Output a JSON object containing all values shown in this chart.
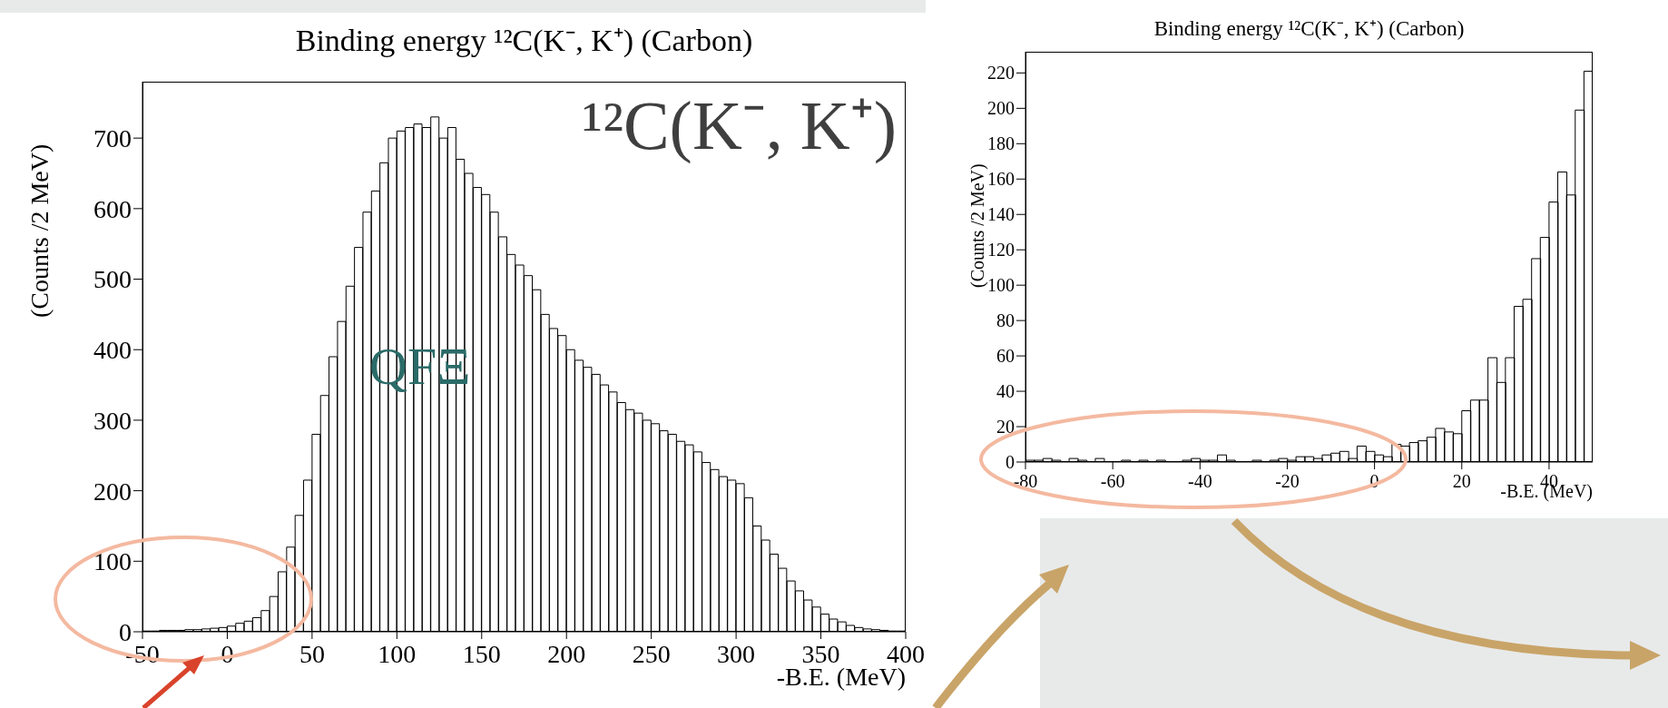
{
  "chart_data": [
    {
      "type": "histogram",
      "title": "Binding energy ¹²C(K⁻, K⁺) (Carbon)",
      "xlabel": "-B.E. (MeV)",
      "ylabel": "(Counts /2 MeV)",
      "bins": [
        -50,
        -45,
        -40,
        -35,
        -30,
        -25,
        -20,
        -15,
        -10,
        -5,
        0,
        5,
        10,
        15,
        20,
        25,
        30,
        35,
        40,
        45,
        50,
        55,
        60,
        65,
        70,
        75,
        80,
        85,
        90,
        95,
        100,
        105,
        110,
        115,
        120,
        125,
        130,
        135,
        140,
        145,
        150,
        155,
        160,
        165,
        170,
        175,
        180,
        185,
        190,
        195,
        200,
        205,
        210,
        215,
        220,
        225,
        230,
        235,
        240,
        245,
        250,
        255,
        260,
        265,
        270,
        275,
        280,
        285,
        290,
        295,
        300,
        305,
        310,
        315,
        320,
        325,
        330,
        335,
        340,
        345,
        350,
        355,
        360,
        365,
        370,
        375,
        380,
        385,
        390,
        395,
        400
      ],
      "values": [
        1,
        1,
        2,
        2,
        2,
        3,
        3,
        4,
        5,
        6,
        8,
        12,
        15,
        20,
        30,
        50,
        85,
        120,
        165,
        215,
        280,
        335,
        390,
        440,
        490,
        545,
        595,
        625,
        665,
        700,
        710,
        715,
        720,
        715,
        730,
        700,
        715,
        670,
        650,
        630,
        620,
        595,
        560,
        535,
        520,
        505,
        485,
        450,
        430,
        420,
        400,
        385,
        375,
        365,
        350,
        340,
        325,
        315,
        310,
        300,
        295,
        285,
        280,
        270,
        265,
        255,
        240,
        230,
        220,
        215,
        210,
        190,
        150,
        130,
        110,
        90,
        72,
        58,
        45,
        35,
        25,
        18,
        14,
        9,
        6,
        4,
        3,
        2,
        1,
        1
      ],
      "color": "#000000",
      "xlim": [
        -50,
        400
      ],
      "xticks": [
        -50,
        0,
        50,
        100,
        150,
        200,
        250,
        300,
        350,
        400
      ],
      "ylim": [
        0,
        780
      ],
      "yticks": [
        0,
        100,
        200,
        300,
        400,
        500,
        600,
        700
      ],
      "annotations": [
        "¹²C(K⁻, K⁺)",
        "QFΞ"
      ]
    },
    {
      "type": "histogram",
      "title": "Binding energy ¹²C(K⁻, K⁺) (Carbon)",
      "xlabel": "-B.E. (MeV)",
      "ylabel": "(Counts /2 MeV)",
      "bins": [
        -80,
        -78,
        -76,
        -74,
        -72,
        -70,
        -68,
        -66,
        -64,
        -62,
        -60,
        -58,
        -56,
        -54,
        -52,
        -50,
        -48,
        -46,
        -44,
        -42,
        -40,
        -38,
        -36,
        -34,
        -32,
        -30,
        -28,
        -26,
        -24,
        -22,
        -20,
        -18,
        -16,
        -14,
        -12,
        -10,
        -8,
        -6,
        -4,
        -2,
        0,
        2,
        4,
        6,
        8,
        10,
        12,
        14,
        16,
        18,
        20,
        22,
        24,
        26,
        28,
        30,
        32,
        34,
        36,
        38,
        40,
        42,
        44,
        46,
        48,
        50
      ],
      "values": [
        1,
        1,
        2,
        1,
        0,
        2,
        1,
        0,
        2,
        0,
        0,
        1,
        0,
        1,
        0,
        1,
        0,
        0,
        1,
        2,
        1,
        1,
        4,
        1,
        0,
        0,
        1,
        0,
        1,
        2,
        1,
        3,
        3,
        2,
        4,
        5,
        6,
        2,
        9,
        6,
        4,
        3,
        10,
        9,
        11,
        12,
        14,
        19,
        17,
        16,
        29,
        35,
        35,
        59,
        45,
        59,
        88,
        92,
        115,
        127,
        147,
        164,
        151,
        199,
        221
      ],
      "color": "#000000",
      "xlim": [
        -80,
        50
      ],
      "xticks": [
        -80,
        -60,
        -40,
        -20,
        0,
        20,
        40
      ],
      "ylim": [
        0,
        232
      ],
      "yticks": [
        0,
        20,
        40,
        60,
        80,
        100,
        120,
        140,
        160,
        180,
        200,
        220
      ]
    }
  ]
}
